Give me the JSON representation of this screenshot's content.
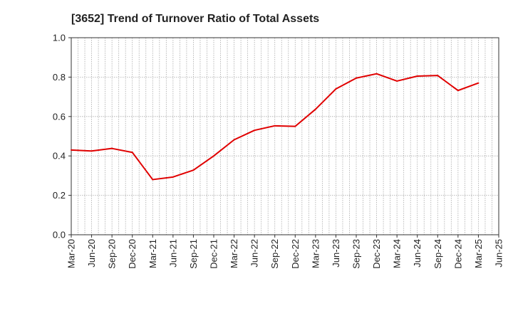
{
  "chart_data": {
    "type": "line",
    "title": "[3652]  Trend of Turnover Ratio of Total Assets",
    "xlabel": "",
    "ylabel": "",
    "ylim": [
      0.0,
      1.0
    ],
    "yticks": [
      "0.0",
      "0.2",
      "0.4",
      "0.6",
      "0.8",
      "1.0"
    ],
    "xticks": [
      "Mar-20",
      "Jun-20",
      "Sep-20",
      "Dec-20",
      "Mar-21",
      "Jun-21",
      "Sep-21",
      "Dec-21",
      "Mar-22",
      "Jun-22",
      "Sep-22",
      "Dec-22",
      "Mar-23",
      "Jun-23",
      "Sep-23",
      "Dec-23",
      "Mar-24",
      "Jun-24",
      "Sep-24",
      "Dec-24",
      "Mar-25",
      "Jun-25"
    ],
    "grid": true,
    "legend": "none",
    "series": [
      {
        "color": "#e00000",
        "x": [
          "Mar-20",
          "Jun-20",
          "Sep-20",
          "Dec-20",
          "Mar-21",
          "Jun-21",
          "Sep-21",
          "Dec-21",
          "Mar-22",
          "Jun-22",
          "Sep-22",
          "Dec-22",
          "Mar-23",
          "Jun-23",
          "Sep-23",
          "Dec-23",
          "Mar-24",
          "Jun-24",
          "Sep-24",
          "Dec-24",
          "Mar-25"
        ],
        "values": [
          0.43,
          0.425,
          0.438,
          0.418,
          0.28,
          0.293,
          0.328,
          0.4,
          0.482,
          0.53,
          0.553,
          0.55,
          0.637,
          0.74,
          0.795,
          0.817,
          0.78,
          0.805,
          0.808,
          0.732,
          0.77
        ]
      }
    ]
  }
}
